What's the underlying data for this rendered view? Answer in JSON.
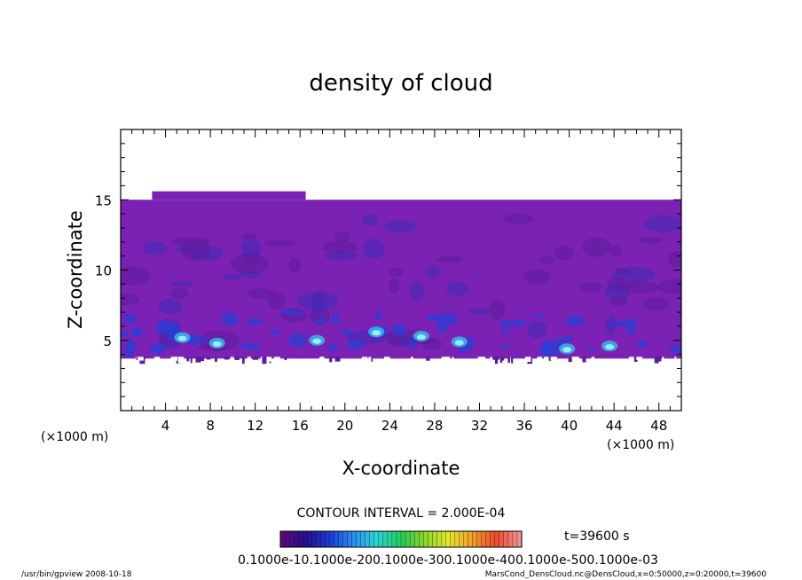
{
  "chart_data": {
    "type": "heatmap",
    "title": "density of cloud",
    "xlabel": "X-coordinate",
    "ylabel": "Z-coordinate",
    "x_unit": "(×1000 m)",
    "y_unit": "(×1000 m)",
    "xlim": [
      0,
      50
    ],
    "ylim": [
      0,
      20
    ],
    "x_ticks": [
      "4",
      "8",
      "12",
      "16",
      "20",
      "24",
      "28",
      "32",
      "36",
      "40",
      "44",
      "48"
    ],
    "y_ticks": [
      "5",
      "10",
      "15"
    ],
    "contour_interval_text": "CONTOUR INTERVAL = 2.000E-04",
    "time_label": "t=39600 s",
    "colorbar_labels_text": "0.1000e-10.1000e-200.1000e-300.1000e-400.1000e-500.1000e-03",
    "colorbar_colors": [
      "#5a0a7a",
      "#24108e",
      "#1a3cd6",
      "#2c8ef0",
      "#2ad6d6",
      "#22cc5a",
      "#8cd62a",
      "#e6e62a",
      "#f2a02a",
      "#ea4a2a",
      "#f09090"
    ],
    "field_colors": {
      "background": "#7b22b4",
      "deep": "#5c1b9a",
      "medium": "#3f2ab8",
      "strong": "#2a3ed6",
      "cyan": "#36b8ec",
      "highlight": "#a6f4fa"
    },
    "footer_left": "/usr/bin/gpview   2008-10-18",
    "footer_right": "MarsCond_DensCloud.nc@DensCloud,x=0:50000,z=0:20000,t=39600"
  }
}
